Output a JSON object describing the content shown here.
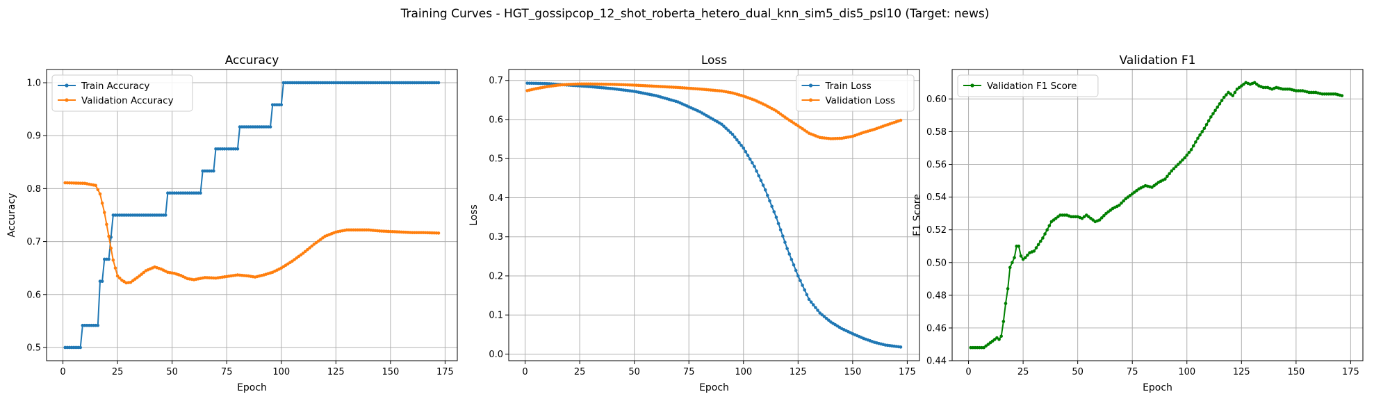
{
  "suptitle": "Training Curves - HGT_gossipcop_12_shot_roberta_hetero_dual_knn_sim5_dis5_psl10 (Target: news)",
  "chart_data": [
    {
      "type": "line",
      "title": "Accuracy",
      "xlabel": "Epoch",
      "ylabel": "Accuracy",
      "xlim": [
        -7.5,
        180.6
      ],
      "ylim": [
        0.475,
        1.025
      ],
      "xticks": [
        "0",
        "25",
        "50",
        "75",
        "100",
        "125",
        "150",
        "175"
      ],
      "yticks": [
        "0.5",
        "0.6",
        "0.7",
        "0.8",
        "0.9",
        "1.0"
      ],
      "grid": true,
      "legend": "upper-left",
      "x_range": [
        1,
        172
      ],
      "series": [
        {
          "name": "Train Accuracy",
          "color": "#1f77b4",
          "knots": [
            [
              1,
              0.5
            ],
            [
              8,
              0.5
            ],
            [
              8.5,
              0.5417
            ],
            [
              16,
              0.5417
            ],
            [
              17,
              0.625
            ],
            [
              18,
              0.625
            ],
            [
              19,
              0.6667
            ],
            [
              21,
              0.6667
            ],
            [
              22,
              0.7083
            ],
            [
              23,
              0.75
            ],
            [
              47,
              0.75
            ],
            [
              48,
              0.7917
            ],
            [
              63,
              0.7917
            ],
            [
              64,
              0.8333
            ],
            [
              69,
              0.8333
            ],
            [
              70,
              0.875
            ],
            [
              80,
              0.875
            ],
            [
              81,
              0.9167
            ],
            [
              95,
              0.9167
            ],
            [
              96,
              0.9583
            ],
            [
              100,
              0.9583
            ],
            [
              101,
              1.0
            ],
            [
              172,
              1.0
            ]
          ]
        },
        {
          "name": "Validation Accuracy",
          "color": "#ff7f0e",
          "knots": [
            [
              1,
              0.811
            ],
            [
              10,
              0.81
            ],
            [
              15,
              0.806
            ],
            [
              17,
              0.79
            ],
            [
              19,
              0.755
            ],
            [
              21,
              0.71
            ],
            [
              23,
              0.665
            ],
            [
              25,
              0.635
            ],
            [
              27,
              0.627
            ],
            [
              29,
              0.622
            ],
            [
              31,
              0.623
            ],
            [
              35,
              0.635
            ],
            [
              38,
              0.645
            ],
            [
              42,
              0.652
            ],
            [
              45,
              0.648
            ],
            [
              48,
              0.642
            ],
            [
              51,
              0.64
            ],
            [
              54,
              0.636
            ],
            [
              57,
              0.63
            ],
            [
              60,
              0.628
            ],
            [
              65,
              0.632
            ],
            [
              70,
              0.631
            ],
            [
              75,
              0.634
            ],
            [
              80,
              0.637
            ],
            [
              85,
              0.635
            ],
            [
              88,
              0.633
            ],
            [
              92,
              0.637
            ],
            [
              96,
              0.642
            ],
            [
              100,
              0.65
            ],
            [
              105,
              0.663
            ],
            [
              110,
              0.678
            ],
            [
              115,
              0.695
            ],
            [
              120,
              0.71
            ],
            [
              125,
              0.718
            ],
            [
              130,
              0.722
            ],
            [
              135,
              0.722
            ],
            [
              140,
              0.722
            ],
            [
              145,
              0.72
            ],
            [
              150,
              0.719
            ],
            [
              155,
              0.718
            ],
            [
              160,
              0.717
            ],
            [
              165,
              0.717
            ],
            [
              172,
              0.716
            ]
          ]
        }
      ]
    },
    {
      "type": "line",
      "title": "Loss",
      "xlabel": "Epoch",
      "ylabel": "Loss",
      "xlim": [
        -7.5,
        180.6
      ],
      "ylim": [
        -0.017,
        0.728
      ],
      "xticks": [
        "0",
        "25",
        "50",
        "75",
        "100",
        "125",
        "150",
        "175"
      ],
      "yticks": [
        "0.0",
        "0.1",
        "0.2",
        "0.3",
        "0.4",
        "0.5",
        "0.6",
        "0.7"
      ],
      "grid": true,
      "legend": "upper-right",
      "x_range": [
        1,
        172
      ],
      "series": [
        {
          "name": "Train Loss",
          "color": "#1f77b4",
          "knots": [
            [
              1,
              0.693
            ],
            [
              10,
              0.692
            ],
            [
              20,
              0.688
            ],
            [
              30,
              0.684
            ],
            [
              40,
              0.679
            ],
            [
              50,
              0.672
            ],
            [
              60,
              0.661
            ],
            [
              70,
              0.645
            ],
            [
              80,
              0.62
            ],
            [
              90,
              0.588
            ],
            [
              95,
              0.562
            ],
            [
              100,
              0.527
            ],
            [
              105,
              0.48
            ],
            [
              110,
              0.42
            ],
            [
              115,
              0.35
            ],
            [
              120,
              0.27
            ],
            [
              125,
              0.2
            ],
            [
              130,
              0.14
            ],
            [
              135,
              0.105
            ],
            [
              140,
              0.082
            ],
            [
              145,
              0.065
            ],
            [
              150,
              0.052
            ],
            [
              155,
              0.04
            ],
            [
              160,
              0.03
            ],
            [
              165,
              0.023
            ],
            [
              172,
              0.018
            ]
          ]
        },
        {
          "name": "Validation Loss",
          "color": "#ff7f0e",
          "knots": [
            [
              1,
              0.674
            ],
            [
              5,
              0.679
            ],
            [
              10,
              0.684
            ],
            [
              15,
              0.688
            ],
            [
              20,
              0.69
            ],
            [
              25,
              0.691
            ],
            [
              30,
              0.691
            ],
            [
              40,
              0.69
            ],
            [
              50,
              0.688
            ],
            [
              60,
              0.685
            ],
            [
              70,
              0.682
            ],
            [
              80,
              0.678
            ],
            [
              90,
              0.673
            ],
            [
              95,
              0.668
            ],
            [
              100,
              0.66
            ],
            [
              105,
              0.65
            ],
            [
              110,
              0.637
            ],
            [
              115,
              0.622
            ],
            [
              120,
              0.602
            ],
            [
              125,
              0.584
            ],
            [
              130,
              0.565
            ],
            [
              135,
              0.554
            ],
            [
              140,
              0.551
            ],
            [
              145,
              0.552
            ],
            [
              150,
              0.557
            ],
            [
              155,
              0.567
            ],
            [
              160,
              0.575
            ],
            [
              165,
              0.585
            ],
            [
              172,
              0.598
            ]
          ]
        }
      ]
    },
    {
      "type": "line",
      "title": "Validation F1",
      "xlabel": "Epoch",
      "ylabel": "F1 Score",
      "xlim": [
        -7.5,
        180.6
      ],
      "ylim": [
        0.44,
        0.618
      ],
      "xticks": [
        "0",
        "25",
        "50",
        "75",
        "100",
        "125",
        "150",
        "175"
      ],
      "yticks": [
        "0.44",
        "0.46",
        "0.48",
        "0.50",
        "0.52",
        "0.54",
        "0.56",
        "0.58",
        "0.60"
      ],
      "grid": true,
      "legend": "upper-left",
      "x_range": [
        1,
        171
      ],
      "series": [
        {
          "name": "Validation F1 Score",
          "color": "#008000",
          "knots": [
            [
              1,
              0.448
            ],
            [
              5,
              0.448
            ],
            [
              7,
              0.448
            ],
            [
              9,
              0.45
            ],
            [
              11,
              0.452
            ],
            [
              13,
              0.454
            ],
            [
              14,
              0.453
            ],
            [
              15,
              0.455
            ],
            [
              16,
              0.464
            ],
            [
              17,
              0.475
            ],
            [
              18,
              0.484
            ],
            [
              19,
              0.497
            ],
            [
              20,
              0.5
            ],
            [
              21,
              0.503
            ],
            [
              22,
              0.51
            ],
            [
              23,
              0.51
            ],
            [
              24,
              0.504
            ],
            [
              25,
              0.502
            ],
            [
              26,
              0.503
            ],
            [
              28,
              0.506
            ],
            [
              30,
              0.507
            ],
            [
              32,
              0.511
            ],
            [
              34,
              0.515
            ],
            [
              36,
              0.52
            ],
            [
              38,
              0.525
            ],
            [
              40,
              0.527
            ],
            [
              42,
              0.529
            ],
            [
              45,
              0.529
            ],
            [
              47,
              0.528
            ],
            [
              50,
              0.528
            ],
            [
              52,
              0.527
            ],
            [
              54,
              0.529
            ],
            [
              56,
              0.527
            ],
            [
              58,
              0.525
            ],
            [
              60,
              0.526
            ],
            [
              63,
              0.53
            ],
            [
              66,
              0.533
            ],
            [
              69,
              0.535
            ],
            [
              72,
              0.539
            ],
            [
              75,
              0.542
            ],
            [
              78,
              0.545
            ],
            [
              81,
              0.547
            ],
            [
              84,
              0.546
            ],
            [
              87,
              0.549
            ],
            [
              90,
              0.551
            ],
            [
              93,
              0.556
            ],
            [
              96,
              0.56
            ],
            [
              99,
              0.564
            ],
            [
              102,
              0.569
            ],
            [
              105,
              0.576
            ],
            [
              108,
              0.582
            ],
            [
              111,
              0.589
            ],
            [
              114,
              0.595
            ],
            [
              117,
              0.601
            ],
            [
              119,
              0.604
            ],
            [
              121,
              0.602
            ],
            [
              123,
              0.606
            ],
            [
              125,
              0.608
            ],
            [
              127,
              0.61
            ],
            [
              129,
              0.609
            ],
            [
              131,
              0.61
            ],
            [
              133,
              0.608
            ],
            [
              135,
              0.607
            ],
            [
              137,
              0.607
            ],
            [
              139,
              0.606
            ],
            [
              141,
              0.607
            ],
            [
              144,
              0.606
            ],
            [
              147,
              0.606
            ],
            [
              150,
              0.605
            ],
            [
              153,
              0.605
            ],
            [
              156,
              0.604
            ],
            [
              159,
              0.604
            ],
            [
              162,
              0.603
            ],
            [
              165,
              0.603
            ],
            [
              168,
              0.603
            ],
            [
              171,
              0.602
            ]
          ]
        }
      ]
    }
  ]
}
